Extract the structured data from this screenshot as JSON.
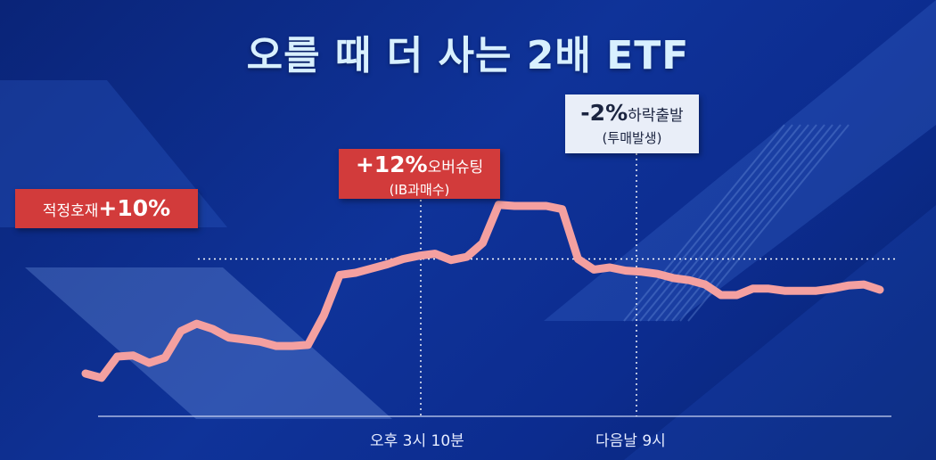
{
  "title": "오를 때 더 사는 2배 ETF",
  "annotations": {
    "favor": {
      "text": "적정호재",
      "value": "+10%"
    },
    "overshoot": {
      "value": "+12%",
      "text": "오버슈팅",
      "sub": "(IB과매수)"
    },
    "drop": {
      "value": "-2%",
      "text": "하락출발",
      "sub": "(투매발생)"
    }
  },
  "chart_data": {
    "type": "line",
    "title": "오를 때 더 사는 2배 ETF",
    "xlabel": "",
    "ylabel": "",
    "x_tick_labels": [
      "오후 3시 10분",
      "다음날 9시"
    ],
    "reference_lines": [
      {
        "label": "적정호재",
        "value": "+10%"
      }
    ],
    "series": [
      {
        "values": [
          -0.8,
          -1.2,
          0.8,
          0.9,
          0.2,
          0.7,
          3.2,
          3.9,
          3.4,
          2.6,
          2.4,
          2.2,
          1.8,
          1.8,
          1.9,
          4.7,
          8.5,
          8.7,
          9.1,
          9.5,
          10.0,
          10.3,
          10.5,
          9.9,
          10.2,
          11.5,
          15.1,
          15.0,
          15.0,
          15.0,
          14.7,
          10.0,
          9.0,
          9.2,
          8.9,
          8.8,
          8.6,
          8.2,
          8.0,
          7.6,
          6.6,
          6.6,
          7.2,
          7.2,
          7.0,
          7.0,
          7.0,
          7.2,
          7.5,
          7.6,
          7.1
        ]
      }
    ],
    "line_color": "#f4a0a0",
    "grid": false
  },
  "colors": {
    "background": "#0f3399",
    "line": "#f4a0a0",
    "label_red": "#d23b3b",
    "label_light": "#e9eef8"
  }
}
